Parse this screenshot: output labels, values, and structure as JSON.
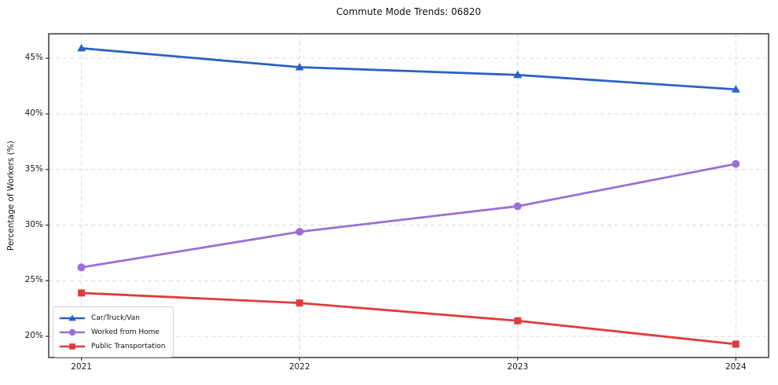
{
  "chart_data": {
    "type": "line",
    "title": "Commute Mode Trends: 06820",
    "xlabel": "",
    "ylabel": "Percentage of Workers (%)",
    "x_labels": [
      "2021",
      "2022",
      "2023",
      "2024"
    ],
    "ylim": [
      18.1,
      47.2
    ],
    "grid": "dashed",
    "legend_position": "lower left",
    "yticks": [
      {
        "value": 20,
        "label": "20%"
      },
      {
        "value": 25,
        "label": "25%"
      },
      {
        "value": 30,
        "label": "30%"
      },
      {
        "value": 35,
        "label": "35%"
      },
      {
        "value": 40,
        "label": "40%"
      },
      {
        "value": 45,
        "label": "45%"
      }
    ],
    "series": [
      {
        "name": "Car/Truck/Van",
        "marker": "triangle",
        "color": "#2b62c1",
        "values": [
          45.9,
          44.2,
          43.5,
          42.2
        ]
      },
      {
        "name": "Worked from Home",
        "marker": "circle",
        "color": "#9a6fd6",
        "values": [
          26.2,
          29.4,
          31.7,
          35.5
        ]
      },
      {
        "name": "Public Transportation",
        "marker": "square",
        "color": "#e03c3c",
        "values": [
          23.9,
          23.0,
          21.4,
          19.3
        ]
      }
    ]
  }
}
